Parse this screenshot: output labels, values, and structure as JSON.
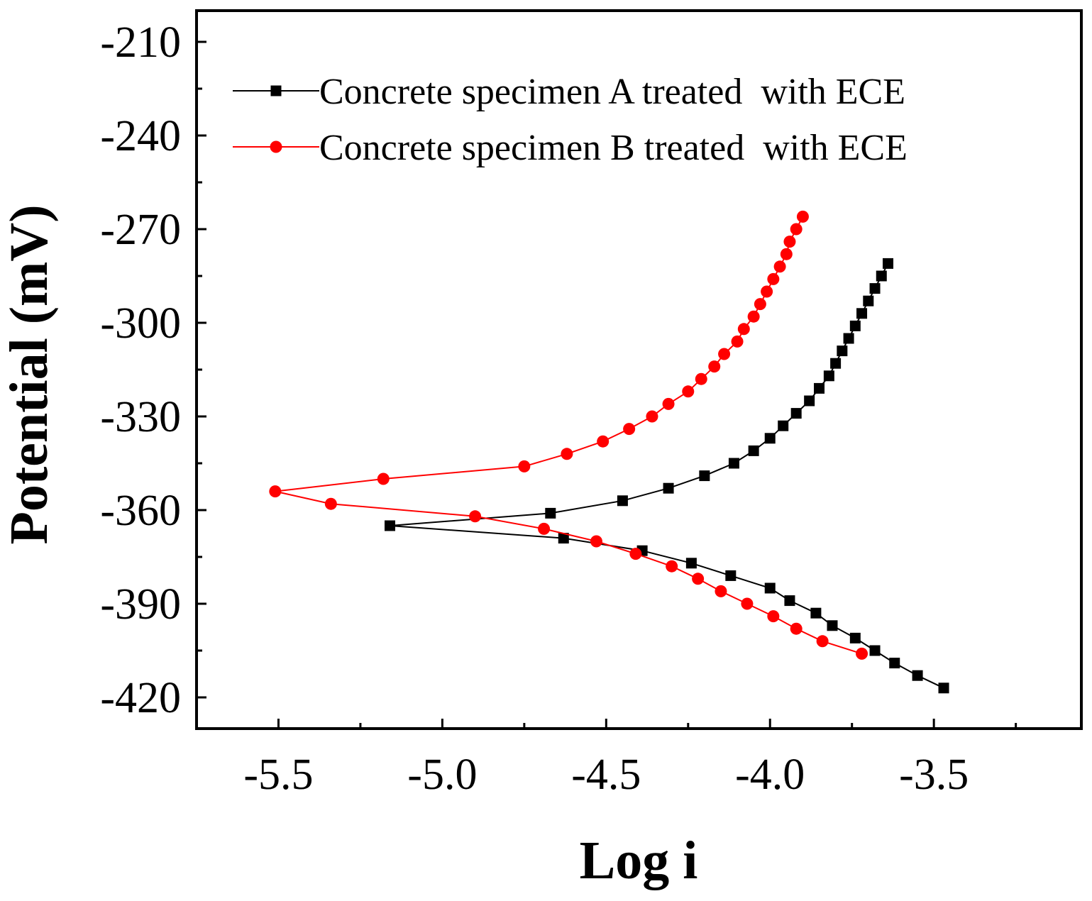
{
  "chart_data": {
    "type": "line",
    "title": "",
    "xlabel": "Log i",
    "ylabel": "Potential (mV)",
    "xlim": [
      -5.75,
      -3.05
    ],
    "ylim": [
      -430,
      -200
    ],
    "xticks": [
      -5.5,
      -5.0,
      -4.5,
      -4.0,
      -3.5
    ],
    "xtick_labels": [
      "-5.5",
      "-5.0",
      "-4.5",
      "-4.0",
      "-3.5"
    ],
    "yticks": [
      -210,
      -240,
      -270,
      -300,
      -330,
      -360,
      -390,
      -420
    ],
    "ytick_labels": [
      "-210",
      "-240",
      "-270",
      "-300",
      "-330",
      "-360",
      "-390",
      "-420"
    ],
    "legend_position": "top-left",
    "series": [
      {
        "name": "Concrete specimen A treated  with ECE",
        "color": "#000000",
        "marker": "square",
        "x": [
          -3.64,
          -3.66,
          -3.68,
          -3.7,
          -3.72,
          -3.74,
          -3.76,
          -3.78,
          -3.8,
          -3.82,
          -3.85,
          -3.88,
          -3.92,
          -3.96,
          -4.0,
          -4.05,
          -4.11,
          -4.2,
          -4.31,
          -4.45,
          -4.67,
          -5.16,
          -4.63,
          -4.39,
          -4.24,
          -4.12,
          -4.0,
          -3.94,
          -3.86,
          -3.81,
          -3.74,
          -3.68,
          -3.62,
          -3.55,
          -3.47
        ],
        "y": [
          -281,
          -285,
          -289,
          -293,
          -297,
          -301,
          -305,
          -309,
          -313,
          -317,
          -321,
          -325,
          -329,
          -333,
          -337,
          -341,
          -345,
          -349,
          -353,
          -357,
          -361,
          -365,
          -369,
          -373,
          -377,
          -381,
          -385,
          -389,
          -393,
          -397,
          -401,
          -405,
          -409,
          -413,
          -417
        ]
      },
      {
        "name": "Concrete specimen B treated  with ECE",
        "color": "#ff0000",
        "marker": "circle",
        "x": [
          -3.9,
          -3.92,
          -3.94,
          -3.95,
          -3.97,
          -3.99,
          -4.01,
          -4.03,
          -4.05,
          -4.08,
          -4.1,
          -4.14,
          -4.17,
          -4.21,
          -4.25,
          -4.31,
          -4.36,
          -4.43,
          -4.51,
          -4.62,
          -4.75,
          -5.18,
          -5.51,
          -5.34,
          -4.9,
          -4.69,
          -4.53,
          -4.41,
          -4.3,
          -4.22,
          -4.15,
          -4.07,
          -3.99,
          -3.92,
          -3.84,
          -3.72
        ],
        "y": [
          -266,
          -270,
          -274,
          -278,
          -282,
          -286,
          -290,
          -294,
          -298,
          -302,
          -306,
          -310,
          -314,
          -318,
          -322,
          -326,
          -330,
          -334,
          -338,
          -342,
          -346,
          -350,
          -354,
          -358,
          -362,
          -366,
          -370,
          -374,
          -378,
          -382,
          -386,
          -390,
          -394,
          -398,
          -402,
          -406
        ]
      }
    ]
  }
}
